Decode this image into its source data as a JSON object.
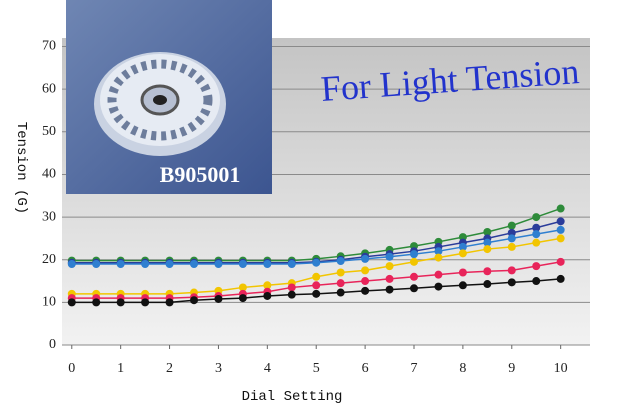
{
  "chart_data": {
    "type": "line",
    "x_label": "Dial Setting",
    "y_label": "Tension (G)",
    "annotation": "For Light Tension",
    "image_label": "B905001",
    "x": [
      0,
      0.5,
      1,
      1.5,
      2,
      2.5,
      3,
      3.5,
      4,
      4.5,
      5,
      5.5,
      6,
      6.5,
      7,
      7.5,
      8,
      8.5,
      9,
      9.5,
      10
    ],
    "series": [
      {
        "color": "#2e8b3a",
        "values": [
          19.8,
          19.8,
          19.8,
          19.8,
          19.8,
          19.8,
          19.8,
          19.8,
          19.8,
          19.8,
          20.2,
          20.8,
          21.5,
          22.3,
          23.2,
          24.2,
          25.3,
          26.5,
          28,
          30,
          32
        ]
      },
      {
        "color": "#2a3c9a",
        "values": [
          19.3,
          19.3,
          19.3,
          19.3,
          19.3,
          19.3,
          19.3,
          19.3,
          19.3,
          19.3,
          19.5,
          20,
          20.7,
          21.3,
          22,
          23,
          24,
          25,
          26.3,
          27.5,
          29
        ]
      },
      {
        "color": "#2f7fd0",
        "values": [
          19,
          19,
          19,
          19,
          19,
          19,
          19,
          19,
          19,
          19,
          19.3,
          19.7,
          20.2,
          20.7,
          21.3,
          22,
          23,
          24,
          25,
          26,
          27
        ]
      },
      {
        "color": "#f2c500",
        "values": [
          12,
          12,
          12,
          12,
          12,
          12.3,
          12.7,
          13.5,
          14,
          14.5,
          16,
          17,
          17.5,
          18.5,
          19.5,
          20.5,
          21.5,
          22.5,
          23,
          24,
          25
        ]
      },
      {
        "color": "#e8245a",
        "values": [
          11,
          11,
          11,
          11,
          11,
          11.2,
          11.5,
          12,
          12.5,
          13.5,
          14,
          14.5,
          15,
          15.5,
          16,
          16.5,
          17,
          17.3,
          17.5,
          18.5,
          19.5
        ]
      },
      {
        "color": "#111111",
        "values": [
          10,
          10,
          10,
          10,
          10,
          10.5,
          10.8,
          11,
          11.5,
          11.8,
          12,
          12.3,
          12.7,
          13,
          13.3,
          13.7,
          14,
          14.3,
          14.7,
          15,
          15.5
        ]
      }
    ],
    "xlim": [
      -0.2,
      10.6
    ],
    "ylim": [
      0,
      72
    ],
    "xticks": [
      0,
      1,
      2,
      3,
      4,
      5,
      6,
      7,
      8,
      9,
      10
    ],
    "yticks": [
      0,
      10,
      20,
      30,
      40,
      50,
      60,
      70
    ],
    "grid": true
  }
}
